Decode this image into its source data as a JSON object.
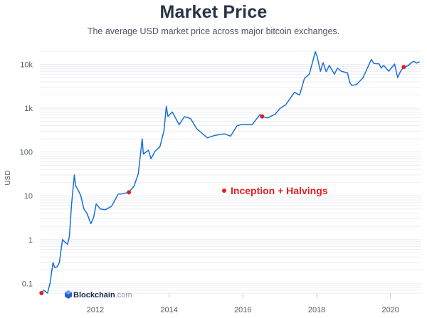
{
  "chart_data": {
    "type": "line",
    "title": "Market Price",
    "subtitle": "The average USD market price across major bitcoin exchanges.",
    "ylabel": "USD",
    "y_scale": "log",
    "ylim": [
      0.06,
      20000
    ],
    "xlim": [
      "2010-07-01",
      "2020-11-01"
    ],
    "y_ticks": [
      0.1,
      1,
      10,
      100,
      1000,
      10000
    ],
    "y_tick_labels": [
      "0.1",
      "1",
      "10",
      "100",
      "1k",
      "10k"
    ],
    "x_ticks": [
      "2012-01-01",
      "2014-01-01",
      "2016-01-01",
      "2018-01-01",
      "2020-01-01"
    ],
    "x_tick_labels": [
      "2012",
      "2014",
      "2016",
      "2018",
      "2020"
    ],
    "grid": true,
    "line_color": "#1a6ed8",
    "marker_color": "#e02020",
    "series": [
      {
        "points": [
          [
            "2010-07-17",
            0.06
          ],
          [
            "2010-08-10",
            0.07
          ],
          [
            "2010-09-15",
            0.06
          ],
          [
            "2010-10-10",
            0.1
          ],
          [
            "2010-11-08",
            0.3
          ],
          [
            "2010-11-25",
            0.23
          ],
          [
            "2010-12-20",
            0.24
          ],
          [
            "2011-01-10",
            0.3
          ],
          [
            "2011-02-10",
            1.0
          ],
          [
            "2011-03-05",
            0.88
          ],
          [
            "2011-04-01",
            0.78
          ],
          [
            "2011-04-20",
            1.2
          ],
          [
            "2011-05-10",
            6.0
          ],
          [
            "2011-06-08",
            30.0
          ],
          [
            "2011-06-20",
            17.0
          ],
          [
            "2011-07-15",
            13.5
          ],
          [
            "2011-08-10",
            10.0
          ],
          [
            "2011-09-10",
            5.0
          ],
          [
            "2011-10-10",
            4.0
          ],
          [
            "2011-11-18",
            2.3
          ],
          [
            "2011-12-15",
            3.2
          ],
          [
            "2012-01-10",
            6.5
          ],
          [
            "2012-02-20",
            5.0
          ],
          [
            "2012-04-10",
            4.8
          ],
          [
            "2012-06-10",
            5.8
          ],
          [
            "2012-08-15",
            11.0
          ],
          [
            "2012-09-15",
            11.0
          ],
          [
            "2012-11-28",
            12.0
          ],
          [
            "2013-01-20",
            17.0
          ],
          [
            "2013-03-01",
            32.0
          ],
          [
            "2013-04-09",
            200.0
          ],
          [
            "2013-04-20",
            90.0
          ],
          [
            "2013-06-10",
            110.0
          ],
          [
            "2013-07-05",
            70.0
          ],
          [
            "2013-08-15",
            105.0
          ],
          [
            "2013-10-01",
            130.0
          ],
          [
            "2013-11-10",
            300.0
          ],
          [
            "2013-12-04",
            1100.0
          ],
          [
            "2013-12-20",
            650.0
          ],
          [
            "2014-02-01",
            820.0
          ],
          [
            "2014-04-10",
            420.0
          ],
          [
            "2014-06-01",
            640.0
          ],
          [
            "2014-08-01",
            580.0
          ],
          [
            "2014-10-01",
            340.0
          ],
          [
            "2015-01-14",
            210.0
          ],
          [
            "2015-04-01",
            240.0
          ],
          [
            "2015-07-01",
            260.0
          ],
          [
            "2015-09-01",
            230.0
          ],
          [
            "2015-11-05",
            400.0
          ],
          [
            "2016-01-01",
            430.0
          ],
          [
            "2016-04-01",
            420.0
          ],
          [
            "2016-06-18",
            720.0
          ],
          [
            "2016-07-09",
            650.0
          ],
          [
            "2016-09-01",
            600.0
          ],
          [
            "2016-11-15",
            730.0
          ],
          [
            "2017-01-05",
            1000.0
          ],
          [
            "2017-03-01",
            1200.0
          ],
          [
            "2017-05-25",
            2300.0
          ],
          [
            "2017-07-15",
            2000.0
          ],
          [
            "2017-09-01",
            4800.0
          ],
          [
            "2017-10-20",
            6000.0
          ],
          [
            "2017-12-17",
            19500.0
          ],
          [
            "2018-01-05",
            15000.0
          ],
          [
            "2018-02-06",
            7000.0
          ],
          [
            "2018-03-05",
            11000.0
          ],
          [
            "2018-04-05",
            6800.0
          ],
          [
            "2018-05-05",
            9500.0
          ],
          [
            "2018-06-25",
            6000.0
          ],
          [
            "2018-07-25",
            8200.0
          ],
          [
            "2018-09-01",
            7000.0
          ],
          [
            "2018-11-01",
            6400.0
          ],
          [
            "2018-11-25",
            3800.0
          ],
          [
            "2018-12-15",
            3300.0
          ],
          [
            "2019-02-01",
            3500.0
          ],
          [
            "2019-04-05",
            5000.0
          ],
          [
            "2019-05-15",
            8000.0
          ],
          [
            "2019-06-26",
            13000.0
          ],
          [
            "2019-07-20",
            10500.0
          ],
          [
            "2019-09-10",
            10300.0
          ],
          [
            "2019-10-01",
            8300.0
          ],
          [
            "2019-10-26",
            9500.0
          ],
          [
            "2019-12-15",
            7000.0
          ],
          [
            "2020-02-10",
            10200.0
          ],
          [
            "2020-03-12",
            5000.0
          ],
          [
            "2020-04-10",
            7000.0
          ],
          [
            "2020-05-11",
            8700.0
          ],
          [
            "2020-06-20",
            9300.0
          ],
          [
            "2020-07-27",
            11000.0
          ],
          [
            "2020-08-20",
            11800.0
          ],
          [
            "2020-09-15",
            10700.0
          ],
          [
            "2020-10-15",
            11500.0
          ]
        ]
      }
    ],
    "markers": [
      {
        "date": "2010-07-17",
        "value": 0.06
      },
      {
        "date": "2012-11-28",
        "value": 12.0
      },
      {
        "date": "2016-07-09",
        "value": 650.0
      },
      {
        "date": "2020-05-11",
        "value": 8700.0
      }
    ],
    "legend_label": "Inception + Halvings"
  },
  "branding": {
    "name": "Blockchain",
    "domain": ".com"
  }
}
